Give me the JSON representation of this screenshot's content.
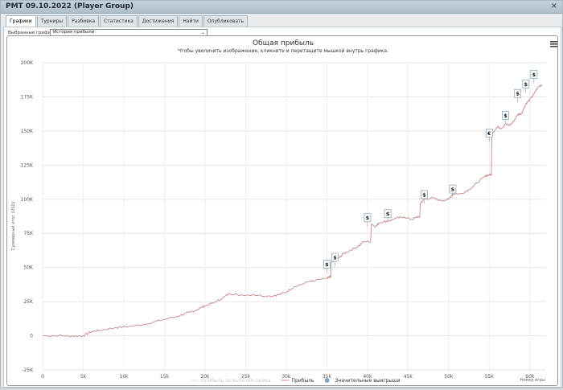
{
  "window": {
    "title": "PMT 09.10.2022 (Player Group)",
    "close_glyph": "×"
  },
  "tabs": [
    {
      "label": "Графики",
      "active": true
    },
    {
      "label": "Турниры",
      "active": false
    },
    {
      "label": "Разбивка",
      "active": false
    },
    {
      "label": "Статистика",
      "active": false
    },
    {
      "label": "Достижения",
      "active": false
    },
    {
      "label": "Найти",
      "active": false
    },
    {
      "label": "Опубликовать",
      "active": false
    }
  ],
  "selector": {
    "label": "Выбранные графики:",
    "value": "История прибыли"
  },
  "menu_icon": "hamburger-icon",
  "chart_data": {
    "type": "line",
    "title": "Общая прибыль",
    "subtitle": "Чтобы увеличить изображение, кликните и перетащите мышкой внутрь графика.",
    "ylabel": "Суммарный итог (USD)",
    "xlabel": "Номер игры",
    "ylim": [
      -25000,
      200000
    ],
    "xlim": [
      0,
      62000
    ],
    "y_ticks": [
      "-25K",
      "0",
      "25K",
      "50K",
      "75K",
      "100K",
      "125K",
      "150K",
      "175K",
      "200K"
    ],
    "y_tick_values": [
      -25000,
      0,
      25000,
      50000,
      75000,
      100000,
      125000,
      150000,
      175000,
      200000
    ],
    "x_ticks": [
      "0",
      "5k",
      "10k",
      "15k",
      "20k",
      "25k",
      "30k",
      "35k",
      "40k",
      "45k",
      "50k",
      "55k",
      "60k"
    ],
    "x_tick_values": [
      0,
      5000,
      10000,
      15000,
      20000,
      25000,
      30000,
      35000,
      40000,
      45000,
      50000,
      55000,
      60000
    ],
    "grid": true,
    "legend_placement": "bottom-center",
    "legend": [
      {
        "name": "Прибыль за вычетом рейка",
        "color": "#e0e0e0",
        "kind": "line",
        "active": false
      },
      {
        "name": "Прибыль",
        "color": "#c98a8a",
        "kind": "line",
        "active": true
      },
      {
        "name": "Значительные выигрыши",
        "color": "#7fa7c9",
        "kind": "dot",
        "active": true
      }
    ],
    "series": [
      {
        "name": "Прибыль",
        "color": "#c98a8a",
        "x": [
          0,
          2000,
          3500,
          5000,
          6000,
          7000,
          9000,
          11000,
          13000,
          15000,
          17000,
          18000,
          19000,
          20000,
          21000,
          22000,
          23000,
          24000,
          26000,
          28000,
          29000,
          30000,
          31000,
          33000,
          35000,
          35300,
          35500,
          36500,
          37000,
          38000,
          39000,
          39500,
          40500,
          41000,
          41500,
          42500,
          43500,
          44500,
          45500,
          46000,
          46500,
          47000,
          48000,
          49000,
          50000,
          50500,
          51500,
          52500,
          53500,
          54500,
          55000,
          55300,
          56000,
          56500,
          57000,
          57500,
          58000,
          58500,
          59000,
          59500,
          60000,
          60500,
          61000,
          61500
        ],
        "y": [
          0,
          200,
          -300,
          0,
          3000,
          4000,
          6000,
          7000,
          9000,
          12000,
          15000,
          17000,
          19000,
          22000,
          24000,
          27000,
          31000,
          30000,
          30000,
          29000,
          30000,
          32000,
          36000,
          40000,
          42000,
          43000,
          53000,
          57000,
          60000,
          63000,
          66000,
          69000,
          82000,
          80000,
          83000,
          84000,
          86000,
          87000,
          85000,
          87000,
          97000,
          100000,
          101000,
          99000,
          100000,
          104000,
          104000,
          107000,
          112000,
          117000,
          118000,
          148000,
          153000,
          152000,
          155000,
          154000,
          157000,
          162000,
          163000,
          170000,
          173000,
          177000,
          182000,
          184000
        ]
      }
    ],
    "big_wins": [
      {
        "x": 35000,
        "y": 46000,
        "label": "$"
      },
      {
        "x": 36000,
        "y": 51000,
        "label": "$"
      },
      {
        "x": 40000,
        "y": 80000,
        "label": "$"
      },
      {
        "x": 42500,
        "y": 83000,
        "label": "$"
      },
      {
        "x": 47000,
        "y": 97000,
        "label": "$"
      },
      {
        "x": 50500,
        "y": 101000,
        "label": "$"
      },
      {
        "x": 55000,
        "y": 142000,
        "label": "€"
      },
      {
        "x": 57000,
        "y": 155000,
        "label": "$"
      },
      {
        "x": 58500,
        "y": 171000,
        "label": "$"
      },
      {
        "x": 59500,
        "y": 178000,
        "label": "$"
      },
      {
        "x": 60500,
        "y": 185000,
        "label": "$"
      }
    ]
  }
}
